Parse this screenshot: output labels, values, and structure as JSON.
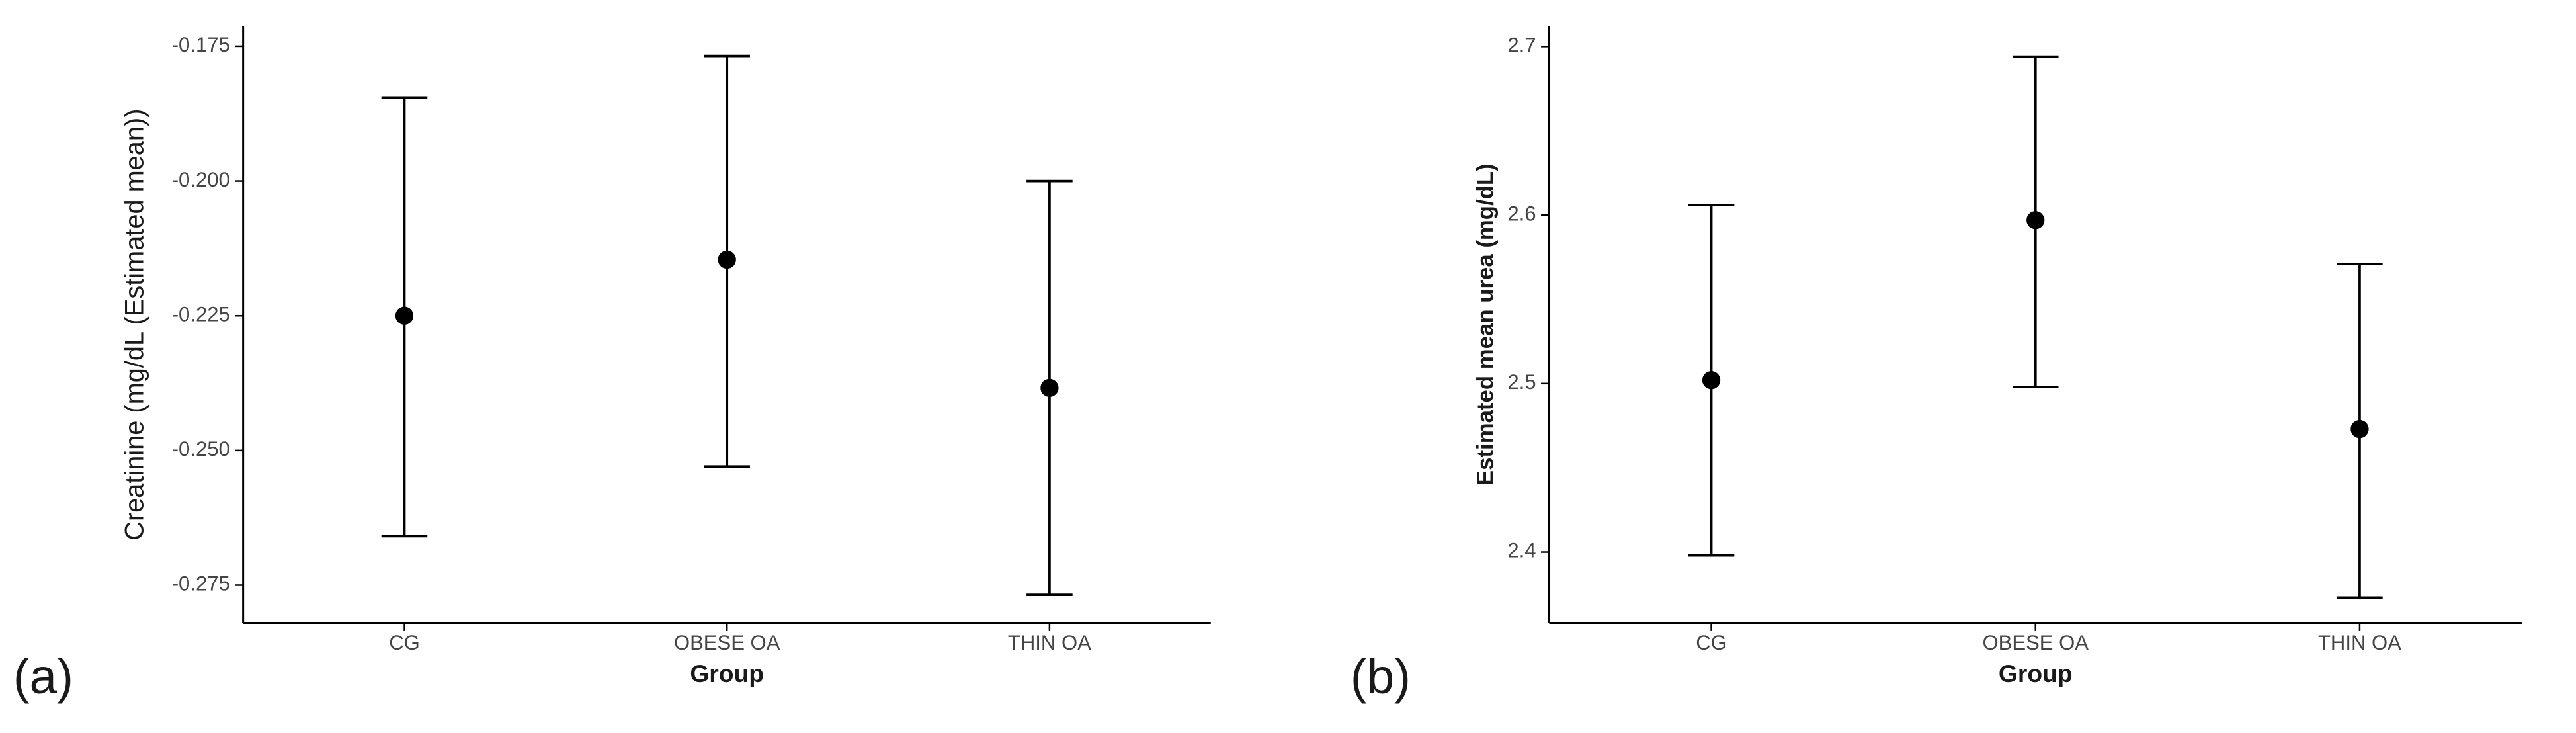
{
  "chart_data": [
    {
      "type": "errorbar",
      "panel_label": "(a)",
      "xlabel": "Group",
      "ylabel": "Creatinine (mg/dL (Estimated mean))",
      "categories": [
        "CG",
        "OBESE OA",
        "THIN OA"
      ],
      "values": [
        -0.225,
        -0.2146,
        -0.2384
      ],
      "lower": [
        -0.2659,
        -0.253,
        -0.2768
      ],
      "upper": [
        -0.1845,
        -0.1768,
        -0.2
      ],
      "color": "#000000",
      "ylim": [
        -0.282,
        -0.1713
      ],
      "yticks": [
        -0.275,
        {
          "value": -0.25,
          "label": "-0.250"
        },
        -0.225,
        {
          "value": -0.2,
          "label": "-0.200"
        },
        -0.175
      ]
    },
    {
      "type": "errorbar",
      "panel_label": "(b)",
      "xlabel": "Group",
      "ylabel": "Estimated mean urea (mg/dL)",
      "categories": [
        "CG",
        "OBESE OA",
        "THIN OA"
      ],
      "values": [
        2.502,
        2.597,
        2.473
      ],
      "lower": [
        2.398,
        2.498,
        2.373
      ],
      "upper": [
        2.606,
        2.694,
        2.571
      ],
      "color": "#000000",
      "ylim": [
        2.358,
        2.712
      ],
      "yticks": [
        2.4,
        2.5,
        2.6,
        2.7
      ]
    }
  ]
}
